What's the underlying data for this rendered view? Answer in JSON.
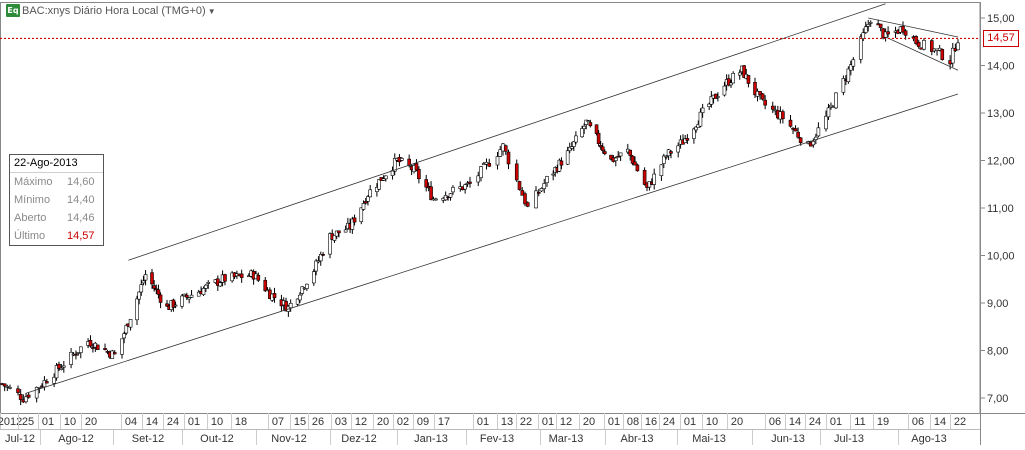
{
  "header": {
    "badge": "Eq",
    "title": "BAC:xnys Diário Hora Local (TMG+0)",
    "dropdown_icon": "caret-down-icon"
  },
  "infobox": {
    "date": "22-Ago-2013",
    "rows": [
      {
        "label": "Máximo",
        "value": "14,60"
      },
      {
        "label": "Mínimo",
        "value": "14,40"
      },
      {
        "label": "Aberto",
        "value": "14,46"
      },
      {
        "label": "Último",
        "value": "14,57"
      }
    ]
  },
  "last_price_label": "14,57",
  "colors": {
    "up": "#ffffff",
    "down": "#cc0000",
    "outline": "#000000",
    "last_line": "#cc0000",
    "trend": "#333333"
  },
  "chart_data": {
    "type": "candlestick",
    "title": "BAC:xnys Diário Hora Local (TMG+0)",
    "y_axis_side": "right",
    "ylim": [
      6.8,
      15.3
    ],
    "y_ticks": [
      "7,00",
      "8,00",
      "9,00",
      "10,00",
      "11,00",
      "12,00",
      "13,00",
      "14,00",
      "15,00"
    ],
    "last_price": 14.57,
    "day_labels": [
      "2012",
      "25",
      "01",
      "10",
      "20",
      "04",
      "14",
      "24",
      "01",
      "10",
      "18",
      "07",
      "15",
      "26",
      "03",
      "12",
      "20",
      "02",
      "09",
      "17",
      "01",
      "13",
      "22",
      "01",
      "12",
      "20",
      "01",
      "08",
      "16",
      "24",
      "01",
      "10",
      "20",
      "06",
      "14",
      "24",
      "01",
      "11",
      "19",
      "06",
      "14",
      "22"
    ],
    "month_labels": [
      "Jul-12",
      "Ago-12",
      "Set-12",
      "Out-12",
      "Nov-12",
      "Dez-12",
      "Jan-13",
      "Fev-13",
      "Mar-13",
      "Abr-13",
      "Mai-13",
      "Jun-13",
      "Jul-13",
      "Ago-13"
    ],
    "price_path_knots": [
      [
        "2012-07-17",
        7.3
      ],
      [
        "2012-07-25",
        7.0
      ],
      [
        "2012-08-01",
        7.3
      ],
      [
        "2012-08-20",
        8.2
      ],
      [
        "2012-08-31",
        7.9
      ],
      [
        "2012-09-06",
        8.6
      ],
      [
        "2012-09-14",
        9.6
      ],
      [
        "2012-09-24",
        8.9
      ],
      [
        "2012-10-10",
        9.3
      ],
      [
        "2012-10-18",
        9.5
      ],
      [
        "2012-10-31",
        9.6
      ],
      [
        "2012-11-07",
        9.2
      ],
      [
        "2012-11-15",
        8.9
      ],
      [
        "2012-11-26",
        9.7
      ],
      [
        "2012-12-03",
        10.4
      ],
      [
        "2012-12-12",
        10.6
      ],
      [
        "2012-12-20",
        11.3
      ],
      [
        "2013-01-02",
        12.0
      ],
      [
        "2013-01-09",
        11.8
      ],
      [
        "2013-01-17",
        11.2
      ],
      [
        "2013-02-01",
        11.5
      ],
      [
        "2013-02-13",
        12.3
      ],
      [
        "2013-02-22",
        11.0
      ],
      [
        "2013-03-01",
        11.6
      ],
      [
        "2013-03-12",
        12.2
      ],
      [
        "2013-03-20",
        12.8
      ],
      [
        "2013-04-01",
        12.0
      ],
      [
        "2013-04-08",
        12.2
      ],
      [
        "2013-04-16",
        11.4
      ],
      [
        "2013-04-24",
        12.1
      ],
      [
        "2013-05-01",
        12.4
      ],
      [
        "2013-05-10",
        13.0
      ],
      [
        "2013-05-20",
        13.6
      ],
      [
        "2013-05-28",
        13.9
      ],
      [
        "2013-06-06",
        13.2
      ],
      [
        "2013-06-14",
        12.9
      ],
      [
        "2013-06-24",
        12.3
      ],
      [
        "2013-07-01",
        12.9
      ],
      [
        "2013-07-11",
        14.0
      ],
      [
        "2013-07-19",
        15.0
      ],
      [
        "2013-07-25",
        14.6
      ],
      [
        "2013-08-01",
        14.8
      ],
      [
        "2013-08-06",
        14.5
      ],
      [
        "2013-08-14",
        14.3
      ],
      [
        "2013-08-19",
        14.1
      ],
      [
        "2013-08-22",
        14.57
      ]
    ],
    "trend_lines": [
      {
        "name": "channel-upper",
        "from": [
          "2012-09-06",
          9.9
        ],
        "to": [
          "2013-07-25",
          15.3
        ]
      },
      {
        "name": "channel-lower",
        "from": [
          "2012-07-26",
          7.1
        ],
        "to": [
          "2013-08-22",
          13.4
        ]
      },
      {
        "name": "short-upper",
        "from": [
          "2013-07-18",
          15.0
        ],
        "to": [
          "2013-08-22",
          14.6
        ]
      },
      {
        "name": "short-lower",
        "from": [
          "2013-07-25",
          14.6
        ],
        "to": [
          "2013-08-22",
          13.9
        ]
      }
    ]
  }
}
